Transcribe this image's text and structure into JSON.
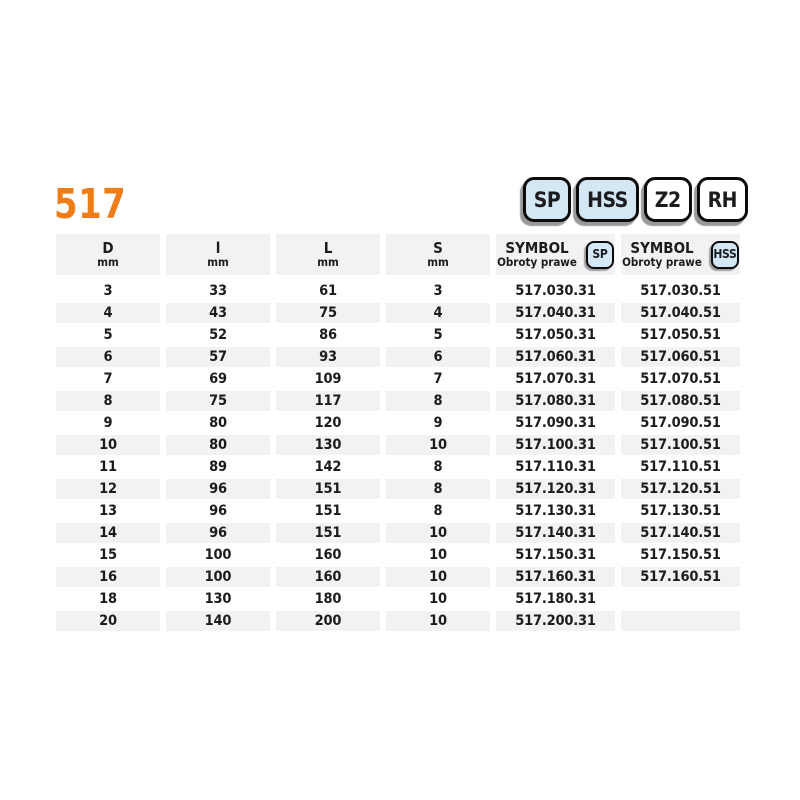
{
  "page": {
    "product_code": "517",
    "language_note": "Obroty prawe",
    "colors": {
      "accent_orange": "#ef7d17",
      "badge_blue": "#d3e7f5",
      "badge_white": "#ffffff",
      "row_gray": "#f2f2f4",
      "text": "#1c1c1e"
    }
  },
  "badges": [
    {
      "label": "SP",
      "style": "blue"
    },
    {
      "label": "HSS",
      "style": "blue"
    },
    {
      "label": "Z2",
      "style": "white"
    },
    {
      "label": "RH",
      "style": "white"
    }
  ],
  "table": {
    "columns": [
      {
        "label": "D",
        "sub": "mm"
      },
      {
        "label": "l",
        "sub": "mm"
      },
      {
        "label": "L",
        "sub": "mm"
      },
      {
        "label": "S",
        "sub": "mm"
      },
      {
        "label": "SYMBOL",
        "sub": "Obroty prawe",
        "badge": "SP"
      },
      {
        "label": "SYMBOL",
        "sub": "Obroty prawe",
        "badge": "HSS"
      }
    ],
    "rows": [
      [
        "3",
        "33",
        "61",
        "3",
        "517.030.31",
        "517.030.51"
      ],
      [
        "4",
        "43",
        "75",
        "4",
        "517.040.31",
        "517.040.51"
      ],
      [
        "5",
        "52",
        "86",
        "5",
        "517.050.31",
        "517.050.51"
      ],
      [
        "6",
        "57",
        "93",
        "6",
        "517.060.31",
        "517.060.51"
      ],
      [
        "7",
        "69",
        "109",
        "7",
        "517.070.31",
        "517.070.51"
      ],
      [
        "8",
        "75",
        "117",
        "8",
        "517.080.31",
        "517.080.51"
      ],
      [
        "9",
        "80",
        "120",
        "9",
        "517.090.31",
        "517.090.51"
      ],
      [
        "10",
        "80",
        "130",
        "10",
        "517.100.31",
        "517.100.51"
      ],
      [
        "11",
        "89",
        "142",
        "8",
        "517.110.31",
        "517.110.51"
      ],
      [
        "12",
        "96",
        "151",
        "8",
        "517.120.31",
        "517.120.51"
      ],
      [
        "13",
        "96",
        "151",
        "8",
        "517.130.31",
        "517.130.51"
      ],
      [
        "14",
        "96",
        "151",
        "10",
        "517.140.31",
        "517.140.51"
      ],
      [
        "15",
        "100",
        "160",
        "10",
        "517.150.31",
        "517.150.51"
      ],
      [
        "16",
        "100",
        "160",
        "10",
        "517.160.31",
        "517.160.51"
      ],
      [
        "18",
        "130",
        "180",
        "10",
        "517.180.31",
        ""
      ],
      [
        "20",
        "140",
        "200",
        "10",
        "517.200.31",
        ""
      ]
    ]
  }
}
